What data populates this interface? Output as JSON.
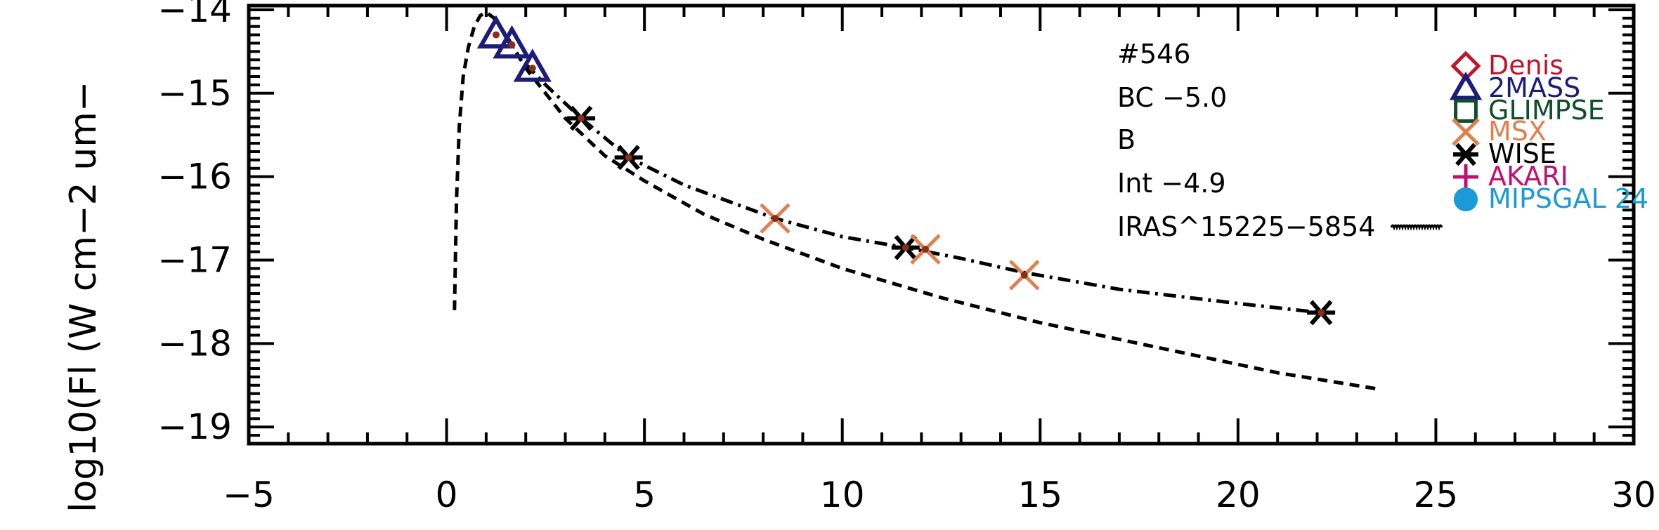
{
  "chart_data": {
    "type": "scatter",
    "title": "",
    "xlabel": "",
    "ylabel": "log10(Fl (W cm−2 um−",
    "xlim": [
      -5,
      30
    ],
    "ylim": [
      -19.2,
      -13.95
    ],
    "xticks": [
      -5,
      0,
      5,
      10,
      15,
      20,
      25,
      30
    ],
    "xtick_labels": [
      "−5",
      "0",
      "5",
      "10",
      "15",
      "20",
      "25",
      "30"
    ],
    "yticks": [
      -14,
      -15,
      -16,
      -17,
      -18,
      -19
    ],
    "ytick_labels": [
      "−14",
      "−15",
      "−16",
      "−17",
      "−18",
      "−19"
    ],
    "annotations": [
      "#546",
      "BC −5.0",
      "B",
      "Int −4.9",
      "IRAS^15225−5854"
    ],
    "legend": [
      {
        "label": "Denis",
        "marker": "diamond",
        "color": "#c0142c"
      },
      {
        "label": "2MASS",
        "marker": "triangle",
        "color": "#1c1c7a"
      },
      {
        "label": "GLIMPSE",
        "marker": "square",
        "color": "#0f4f2a"
      },
      {
        "label": "MSX",
        "marker": "x",
        "color": "#e08050"
      },
      {
        "label": "WISE",
        "marker": "asterisk",
        "color": "#000000"
      },
      {
        "label": "AKARI",
        "marker": "plus",
        "color": "#c01070"
      },
      {
        "label": "MIPSGAL 24",
        "marker": "circle",
        "color": "#1a9ad6"
      }
    ],
    "legend_position": "right",
    "series": [
      {
        "name": "2MASS",
        "marker": "triangle",
        "color": "#1c1c7a",
        "x": [
          1.25,
          1.65,
          2.17
        ],
        "y": [
          -14.3,
          -14.42,
          -14.7
        ]
      },
      {
        "name": "WISE",
        "marker": "asterisk",
        "color": "#000000",
        "x": [
          3.4,
          4.6,
          11.6,
          22.1
        ],
        "y": [
          -15.3,
          -15.77,
          -16.85,
          -17.63
        ]
      },
      {
        "name": "MSX",
        "marker": "x",
        "color": "#e08050",
        "x": [
          8.3,
          12.1,
          14.6
        ],
        "y": [
          -16.5,
          -16.87,
          -17.18
        ]
      }
    ],
    "models": [
      {
        "style": "dashed",
        "x": [
          0.2,
          0.25,
          0.32,
          0.42,
          0.55,
          0.7,
          0.85,
          1.0,
          1.2,
          1.5,
          2.0,
          3.0,
          4.0,
          5.0,
          6.5,
          8.0,
          10.0,
          12.5,
          15.0,
          18.0,
          21.0,
          23.6
        ],
        "y": [
          -17.6,
          -16.3,
          -15.4,
          -14.8,
          -14.45,
          -14.2,
          -14.07,
          -14.03,
          -14.1,
          -14.3,
          -14.7,
          -15.3,
          -15.75,
          -16.05,
          -16.45,
          -16.75,
          -17.1,
          -17.45,
          -17.75,
          -18.05,
          -18.35,
          -18.55
        ]
      },
      {
        "style": "dashdot",
        "x": [
          2.0,
          2.5,
          3.4,
          4.6,
          6.0,
          8.3,
          10.0,
          11.6,
          13.0,
          14.6,
          17.0,
          20.0,
          22.1
        ],
        "y": [
          -14.65,
          -14.9,
          -15.3,
          -15.77,
          -16.1,
          -16.5,
          -16.72,
          -16.85,
          -16.98,
          -17.15,
          -17.35,
          -17.52,
          -17.63
        ]
      }
    ],
    "point_color": "#8b2e16",
    "grid": false
  }
}
